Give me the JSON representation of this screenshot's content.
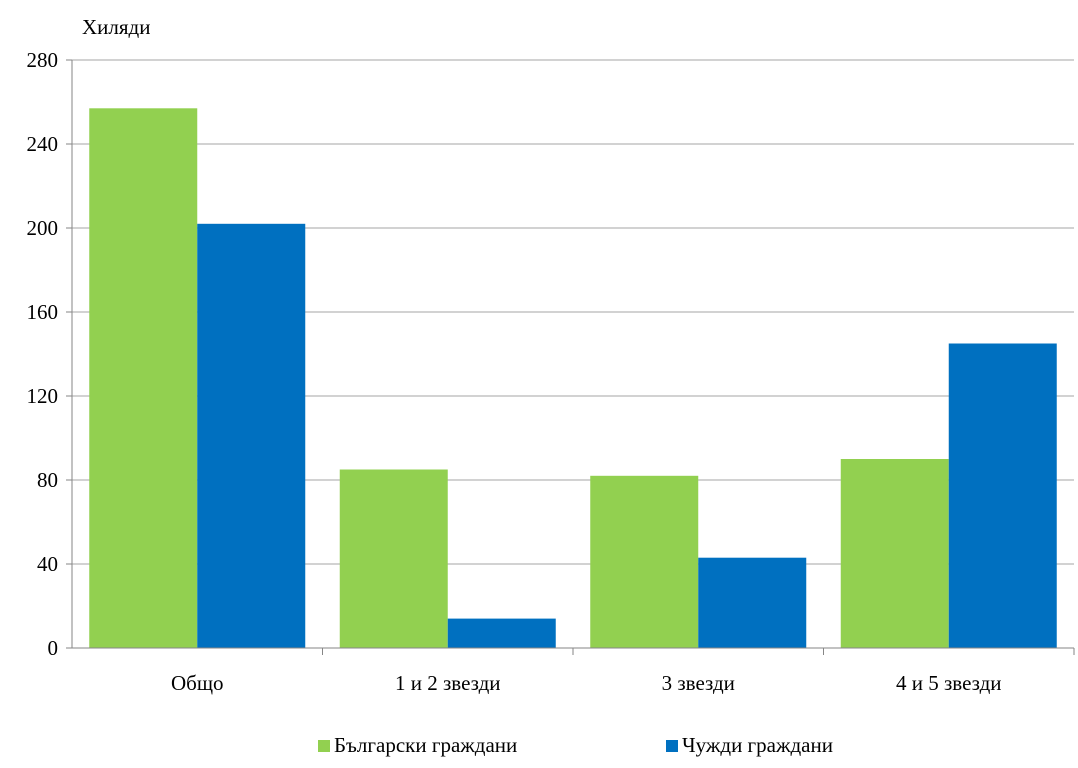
{
  "chart_data": {
    "type": "bar",
    "unit_label": "Хиляди",
    "title": "",
    "xlabel": "",
    "ylabel": "",
    "categories": [
      "Общо",
      "1 и 2 звезди",
      "3 звезди",
      "4 и 5 звезди"
    ],
    "series": [
      {
        "name": "Български граждани",
        "color": "#92d050",
        "values": [
          257,
          85,
          82,
          90
        ]
      },
      {
        "name": "Чужди граждани",
        "color": "#0070c0",
        "values": [
          202,
          14,
          43,
          145
        ]
      }
    ],
    "ylim": [
      0,
      280
    ],
    "yticks": [
      0,
      40,
      80,
      120,
      160,
      200,
      240,
      280
    ],
    "grid": true,
    "legend_position": "bottom"
  }
}
